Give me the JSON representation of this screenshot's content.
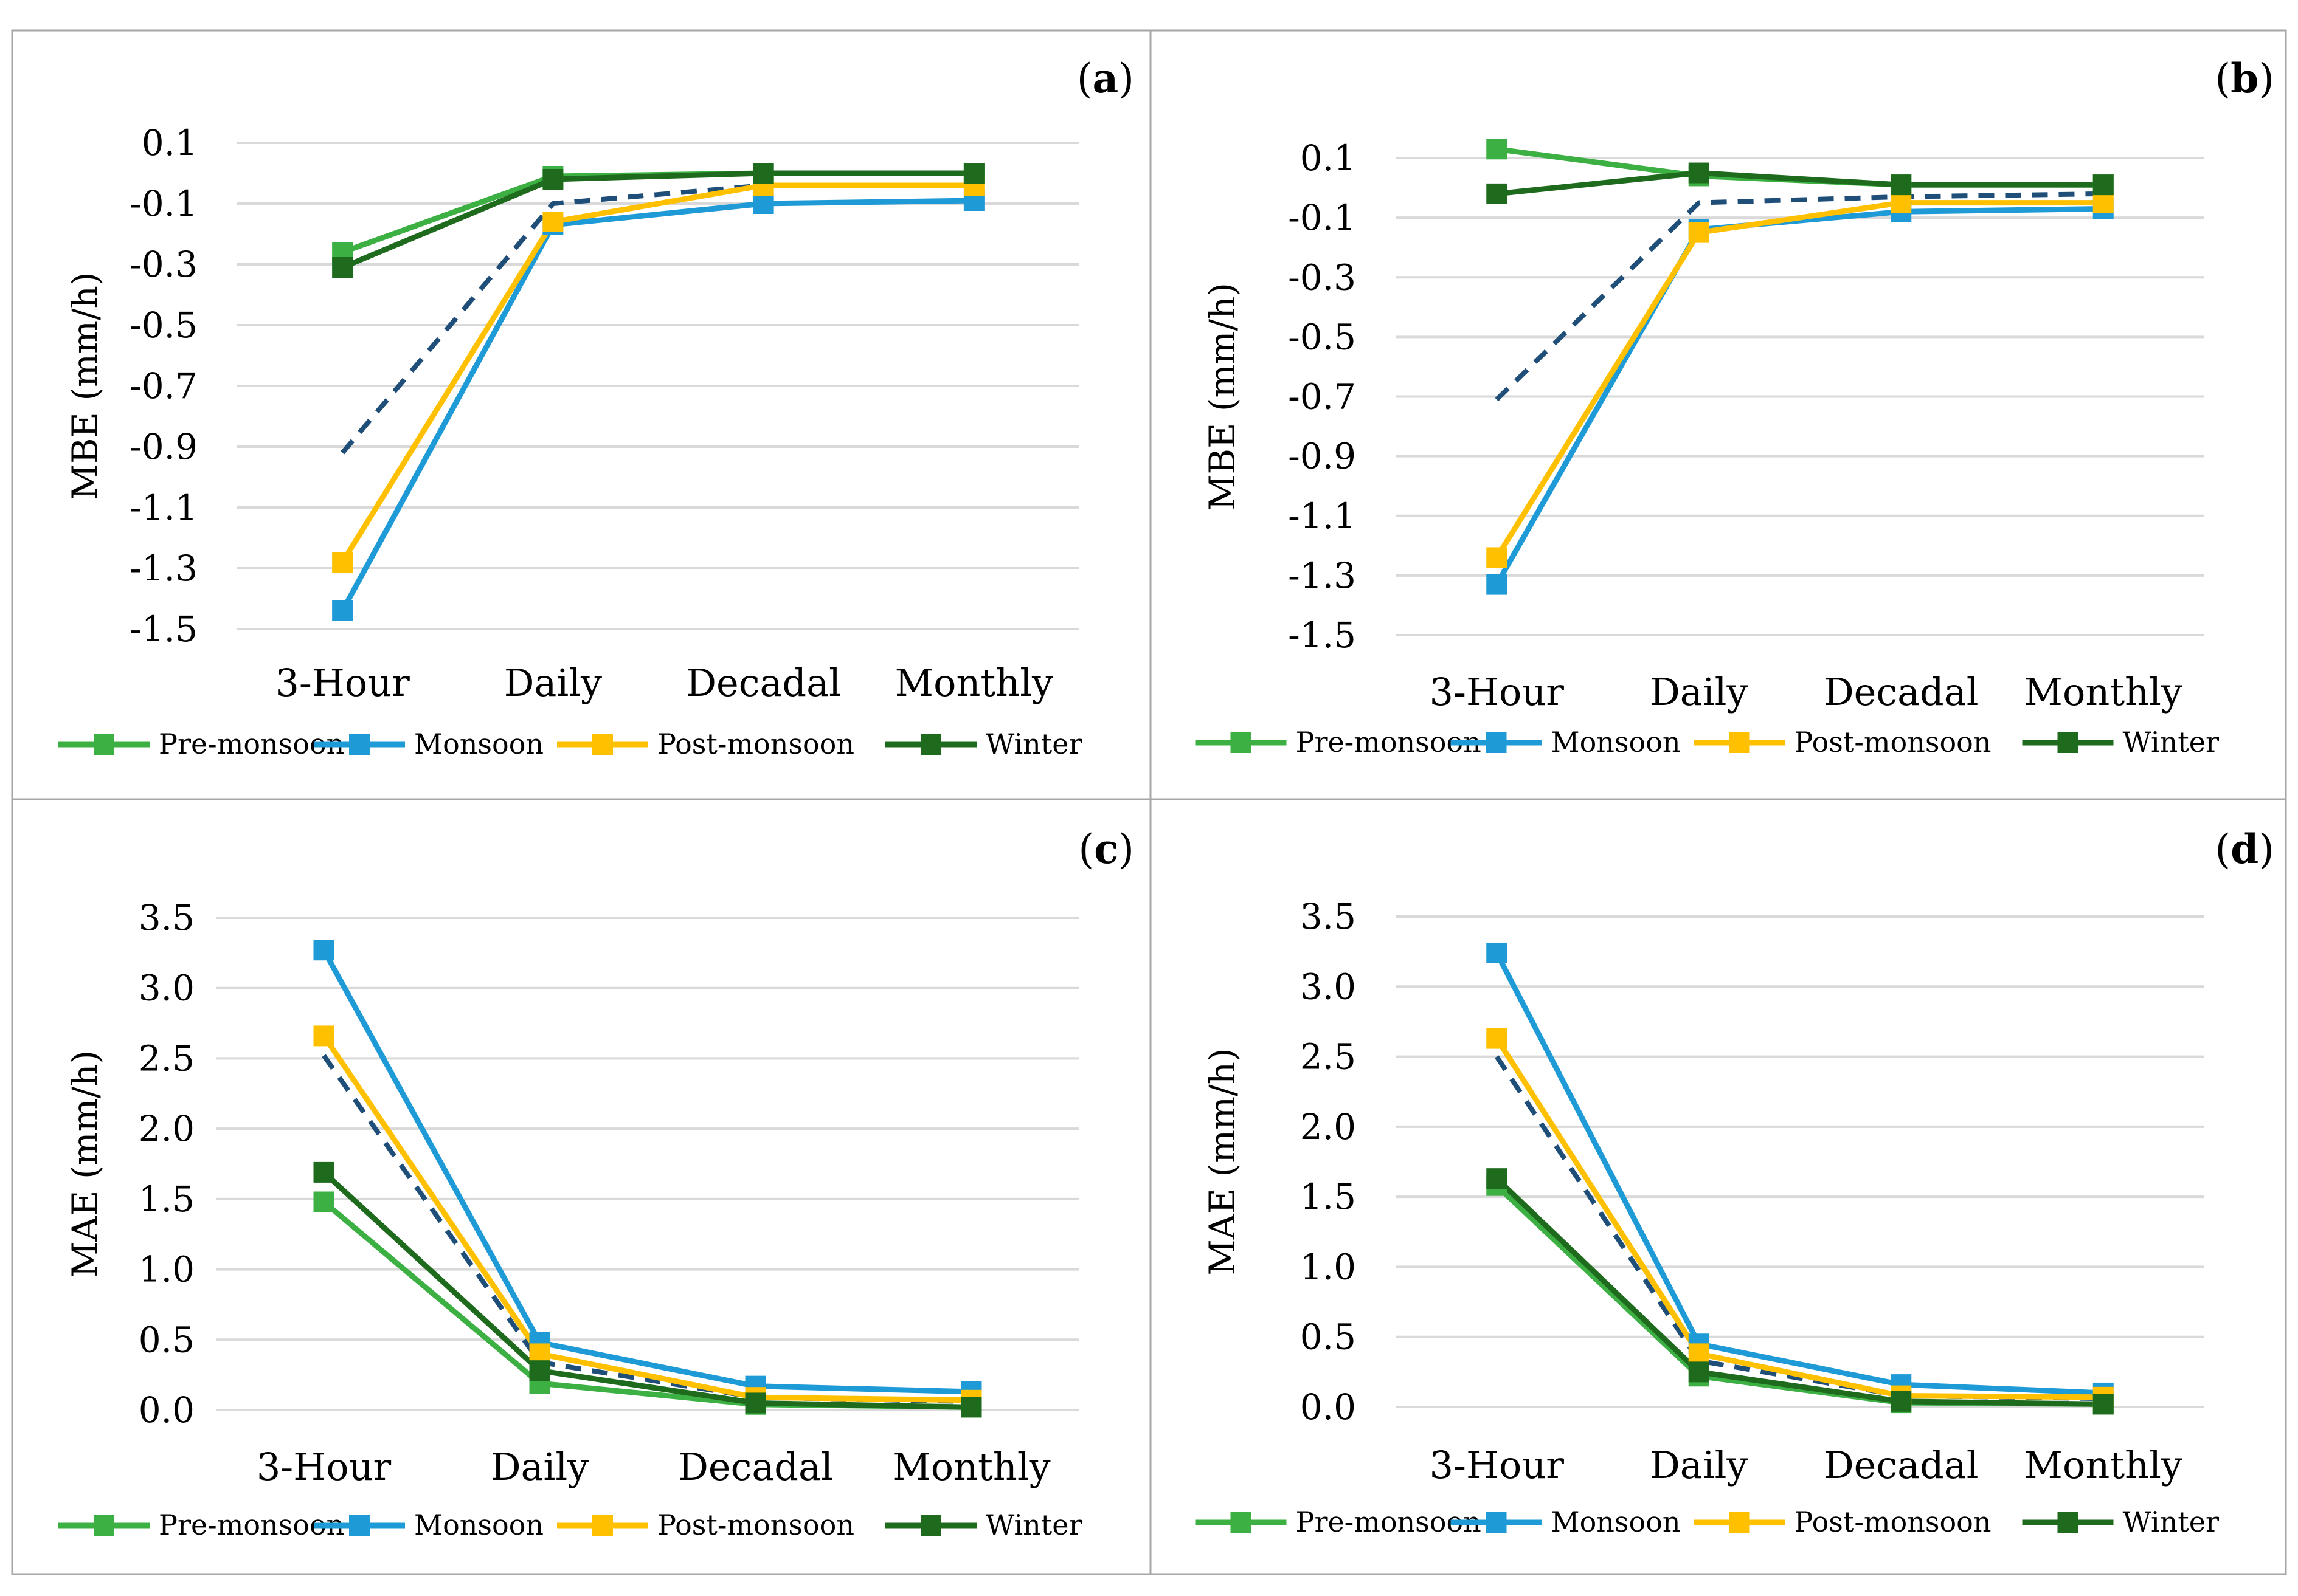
{
  "figure": {
    "series_styles": [
      {
        "name": "Pre-monsoon",
        "color": "#3cb043",
        "dashed": false
      },
      {
        "name": "Monsoon",
        "color": "#1e9ad6",
        "dashed": false
      },
      {
        "name": "Post-monsoon",
        "color": "#ffc000",
        "dashed": false
      },
      {
        "name": "Winter",
        "color": "#1e6b1e",
        "dashed": false
      },
      {
        "name": "",
        "color": "#1f4e79",
        "dashed": true
      }
    ],
    "grid_color": "#d9d9d9",
    "border_color": "#a6a6a6"
  },
  "chart_data": [
    {
      "type": "line",
      "panel_label": "(a)",
      "panel_letter": "a",
      "categories": [
        "3-Hour",
        "Daily",
        "Decadal",
        "Monthly"
      ],
      "ylabel": "MBE (mm/h)",
      "ylim": [
        -1.5,
        0.1
      ],
      "yticks": [
        0.1,
        -0.1,
        -0.3,
        -0.5,
        -0.7,
        -0.9,
        -1.1,
        -1.3,
        -1.5
      ],
      "ytick_labels": [
        "0.1",
        "-0.1",
        "-0.3",
        "-0.5",
        "-0.7",
        "-0.9",
        "-1.1",
        "-1.3",
        "-1.5"
      ],
      "series": [
        {
          "name": "Pre-monsoon",
          "values": [
            -0.26,
            -0.01,
            0.0,
            0.0
          ]
        },
        {
          "name": "Monsoon",
          "values": [
            -1.44,
            -0.17,
            -0.1,
            -0.09
          ]
        },
        {
          "name": "Post-monsoon",
          "values": [
            -1.28,
            -0.16,
            -0.04,
            -0.04
          ]
        },
        {
          "name": "Winter",
          "values": [
            -0.31,
            -0.02,
            0.0,
            0.0
          ]
        },
        {
          "name": "",
          "values": [
            -0.92,
            -0.1,
            -0.04,
            -0.04
          ],
          "dashed": true
        }
      ],
      "legend": [
        "Pre-monsoon",
        "Monsoon",
        "Post-monsoon",
        "Winter"
      ],
      "legend_position": "bottom"
    },
    {
      "type": "line",
      "panel_label": "(b)",
      "panel_letter": "b",
      "categories": [
        "3-Hour",
        "Daily",
        "Decadal",
        "Monthly"
      ],
      "ylabel": "MBE (mm/h)",
      "ylim": [
        -1.5,
        0.1
      ],
      "yticks": [
        0.1,
        -0.1,
        -0.3,
        -0.5,
        -0.7,
        -0.9,
        -1.1,
        -1.3,
        -1.5
      ],
      "ytick_labels": [
        "0.1",
        "-0.1",
        "-0.3",
        "-0.5",
        "-0.7",
        "-0.9",
        "-1.1",
        "-1.3",
        "-1.5"
      ],
      "series": [
        {
          "name": "Pre-monsoon",
          "values": [
            0.13,
            0.04,
            0.01,
            0.01
          ]
        },
        {
          "name": "Monsoon",
          "values": [
            -1.33,
            -0.14,
            -0.08,
            -0.07
          ]
        },
        {
          "name": "Post-monsoon",
          "values": [
            -1.24,
            -0.15,
            -0.05,
            -0.05
          ]
        },
        {
          "name": "Winter",
          "values": [
            -0.02,
            0.05,
            0.01,
            0.01
          ]
        },
        {
          "name": "",
          "values": [
            -0.71,
            -0.05,
            -0.03,
            -0.02
          ],
          "dashed": true
        }
      ],
      "legend": [
        "Pre-monsoon",
        "Monsoon",
        "Post-monsoon",
        "Winter"
      ],
      "legend_position": "bottom"
    },
    {
      "type": "line",
      "panel_label": "(c)",
      "panel_letter": "c",
      "categories": [
        "3-Hour",
        "Daily",
        "Decadal",
        "Monthly"
      ],
      "ylabel": "MAE (mm/h)",
      "ylim": [
        0.0,
        3.5
      ],
      "yticks": [
        3.5,
        3.0,
        2.5,
        2.0,
        1.5,
        1.0,
        0.5,
        0.0
      ],
      "ytick_labels": [
        "3.5",
        "3.0",
        "2.5",
        "2.0",
        "1.5",
        "1.0",
        "0.5",
        "0.0"
      ],
      "series": [
        {
          "name": "Pre-monsoon",
          "values": [
            1.48,
            0.19,
            0.04,
            0.02
          ]
        },
        {
          "name": "Monsoon",
          "values": [
            3.27,
            0.48,
            0.17,
            0.13
          ]
        },
        {
          "name": "Post-monsoon",
          "values": [
            2.66,
            0.4,
            0.09,
            0.07
          ]
        },
        {
          "name": "Winter",
          "values": [
            1.69,
            0.28,
            0.05,
            0.02
          ]
        },
        {
          "name": "",
          "values": [
            2.52,
            0.34,
            0.09,
            0.06
          ],
          "dashed": true
        }
      ],
      "legend": [
        "Pre-monsoon",
        "Monsoon",
        "Post-monsoon",
        "Winter"
      ],
      "legend_position": "bottom"
    },
    {
      "type": "line",
      "panel_label": "(d)",
      "panel_letter": "d",
      "categories": [
        "3-Hour",
        "Daily",
        "Decadal",
        "Monthly"
      ],
      "ylabel": "MAE (mm/h)",
      "ylim": [
        0.0,
        3.5
      ],
      "yticks": [
        3.5,
        3.0,
        2.5,
        2.0,
        1.5,
        1.0,
        0.5,
        0.0
      ],
      "ytick_labels": [
        "3.5",
        "3.0",
        "2.5",
        "2.0",
        "1.5",
        "1.0",
        "0.5",
        "0.0"
      ],
      "series": [
        {
          "name": "Pre-monsoon",
          "values": [
            1.58,
            0.22,
            0.03,
            0.02
          ]
        },
        {
          "name": "Monsoon",
          "values": [
            3.24,
            0.45,
            0.16,
            0.1
          ]
        },
        {
          "name": "Post-monsoon",
          "values": [
            2.63,
            0.38,
            0.08,
            0.07
          ]
        },
        {
          "name": "Winter",
          "values": [
            1.63,
            0.25,
            0.04,
            0.02
          ]
        },
        {
          "name": "",
          "values": [
            2.5,
            0.33,
            0.08,
            0.06
          ],
          "dashed": true
        }
      ],
      "legend": [
        "Pre-monsoon",
        "Monsoon",
        "Post-monsoon",
        "Winter"
      ],
      "legend_position": "bottom"
    }
  ]
}
